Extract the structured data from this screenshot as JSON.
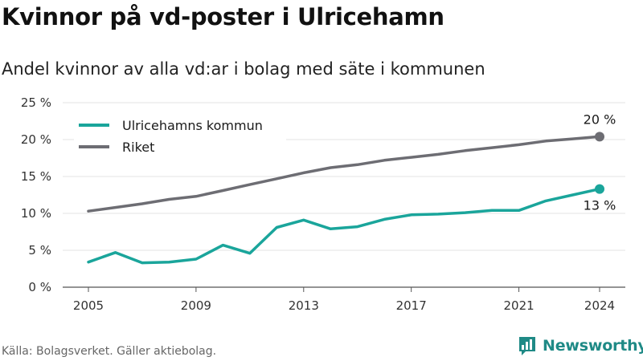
{
  "title": "Kvinnor på vd-poster i Ulricehamn",
  "subtitle": "Andel kvinnor av alla vd:ar i bolag med säte i kommunen",
  "source": "Källa: Bolagsverket. Gäller aktiebolag.",
  "brand": {
    "name": "Newsworthy",
    "icon": "bar-chart-logo-icon",
    "color": "#1f8a86"
  },
  "chart_data": {
    "type": "line",
    "x": [
      2005,
      2006,
      2007,
      2008,
      2009,
      2010,
      2011,
      2012,
      2013,
      2014,
      2015,
      2016,
      2017,
      2018,
      2019,
      2020,
      2021,
      2022,
      2023,
      2024
    ],
    "xticks": [
      2005,
      2009,
      2013,
      2017,
      2021,
      2024
    ],
    "xtick_labels": [
      "2005",
      "2009",
      "2013",
      "2017",
      "2021",
      "2024"
    ],
    "xlim": [
      2005,
      2024
    ],
    "ylim": [
      0,
      25
    ],
    "yticks": [
      0,
      5,
      10,
      15,
      20,
      25
    ],
    "ytick_labels": [
      "0 %",
      "5 %",
      "10 %",
      "15 %",
      "20 %",
      "25 %"
    ],
    "grid": true,
    "legend_position": "top-left",
    "series": [
      {
        "name": "Ulricehamns kommun",
        "color": "#1aa59b",
        "values": [
          3.4,
          4.7,
          3.3,
          3.4,
          3.8,
          5.7,
          4.6,
          8.1,
          9.1,
          7.9,
          8.2,
          9.2,
          9.8,
          9.9,
          10.1,
          10.4,
          10.4,
          11.7,
          12.5,
          13.3
        ],
        "end_label": "13 %"
      },
      {
        "name": "Riket",
        "color": "#6d6d73",
        "values": [
          10.3,
          10.8,
          11.3,
          11.9,
          12.3,
          13.1,
          13.9,
          14.7,
          15.5,
          16.2,
          16.6,
          17.2,
          17.6,
          18.0,
          18.5,
          18.9,
          19.3,
          19.8,
          20.1,
          20.4
        ],
        "end_label": "20 %"
      }
    ]
  }
}
